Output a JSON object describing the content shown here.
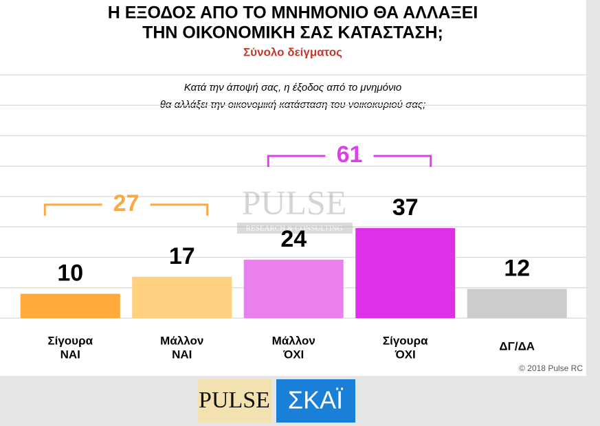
{
  "chart_data": {
    "type": "bar",
    "title": [
      "Η ΕΞΟΔΟΣ ΑΠΟ ΤΟ ΜΝΗΜΟΝΙΟ ΘΑ ΑΛΛΑΞΕΙ",
      "ΤΗΝ ΟΙΚΟΝΟΜΙΚΗ ΣΑΣ ΚΑΤΑΣΤΑΣΗ;"
    ],
    "subtitle": "Σύνολο δείγματος",
    "question": [
      "Κατά την άποψή σας, η έξοδος από το μνημόνιο",
      "θα αλλάξει την οικονομική κατάσταση του νοικοκυριού σας;"
    ],
    "categories": [
      [
        "Σίγουρα",
        "ΝΑΙ"
      ],
      [
        "Μάλλον",
        "ΝΑΙ"
      ],
      [
        "Μάλλον",
        "ΌΧΙ"
      ],
      [
        "Σίγουρα",
        "ΌΧΙ"
      ],
      [
        "ΔΓ/ΔΑ"
      ]
    ],
    "values": [
      10,
      17,
      24,
      37,
      12
    ],
    "colors": [
      "#ffaa3c",
      "#ffd07f",
      "#ea80ee",
      "#dd30e8",
      "#cccccc"
    ],
    "groups": [
      {
        "value": 27,
        "color": "#f7a945",
        "members": [
          0,
          1
        ]
      },
      {
        "value": 61,
        "color": "#dd40e8",
        "members": [
          2,
          3
        ]
      }
    ],
    "ylim": [
      0,
      100
    ],
    "yticks": [
      0,
      12.5,
      25,
      37.5,
      50,
      62.5,
      75,
      87.5,
      100
    ],
    "grid": true,
    "watermark": [
      "PULSE",
      "RESEARCH & CONSULTING"
    ],
    "copyright": "© 2018 Pulse RC",
    "logos": [
      "PULSE",
      "ΣΚΑΪ"
    ]
  }
}
